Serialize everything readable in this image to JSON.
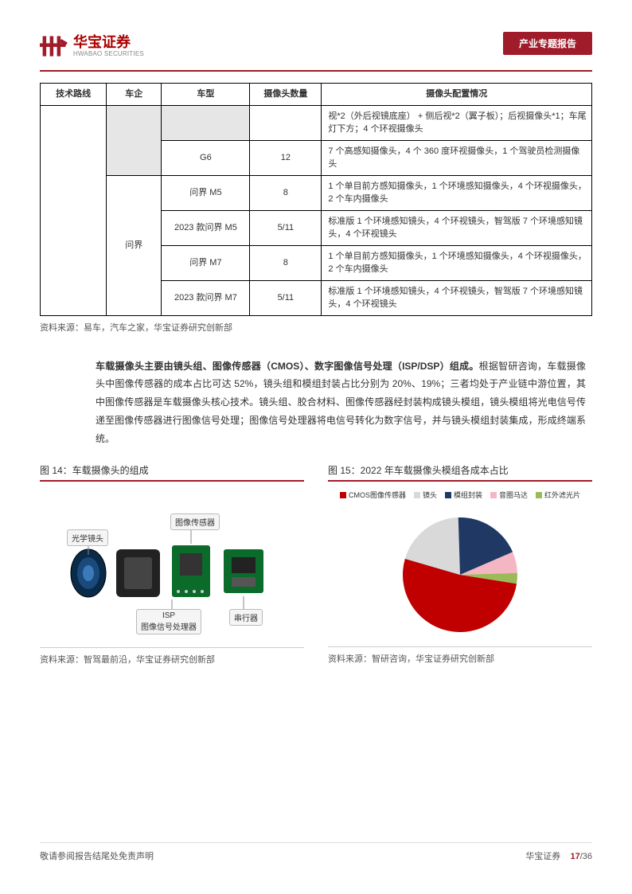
{
  "header": {
    "logo_cn": "华宝证券",
    "logo_en": "HWABAO SECURITIES",
    "logo_color": "#a01c2a",
    "badge": "产业专题报告"
  },
  "table": {
    "headers": [
      "技术路线",
      "车企",
      "车型",
      "摄像头数量",
      "摄像头配置情况"
    ],
    "col_widths": [
      "12%",
      "10%",
      "16%",
      "13%",
      "49%"
    ],
    "rows": [
      {
        "merge": "first",
        "tech": "",
        "maker": "",
        "model": "",
        "count": "",
        "desc": "视*2（外后视镜底座） + 侧后视*2（翼子板）；后视摄像头*1；车尾灯下方；4 个环视摄像头"
      },
      {
        "merge": "prev-maker",
        "model": "G6",
        "count": "12",
        "desc": "7 个高感知摄像头，4 个 360 度环视摄像头，1 个驾驶员检测摄像头"
      },
      {
        "maker": "问界",
        "maker_rowspan": 4,
        "model": "问界 M5",
        "count": "8",
        "desc": "1 个单目前方感知摄像头，1 个环境感知摄像头，4 个环视摄像头，2 个车内摄像头"
      },
      {
        "model": "2023 款问界 M5",
        "count": "5/11",
        "desc": "标准版 1 个环境感知镜头，4 个环视镜头，智驾版 7 个环境感知镜头，4 个环视镜头"
      },
      {
        "model": "问界 M7",
        "count": "8",
        "desc": "1 个单目前方感知摄像头，1 个环境感知摄像头，4 个环视摄像头，2 个车内摄像头"
      },
      {
        "model": "2023 款问界 M7",
        "count": "5/11",
        "desc": "标准版 1 个环境感知镜头，4 个环视镜头，智驾版 7 个环境感知镜头，4 个环视镜头"
      }
    ],
    "source": "资料来源：易车，汽车之家，华宝证券研究创新部"
  },
  "body": {
    "bold_lead": "车载摄像头主要由镜头组、图像传感器（CMOS）、数字图像信号处理（ISP/DSP）组成。",
    "text": "根据智研咨询，车载摄像头中图像传感器的成本占比可达 52%，镜头组和模组封装占比分别为 20%、19%；三者均处于产业链中游位置，其中图像传感器是车载摄像头核心技术。镜头组、胶合材料、图像传感器经封装构成镜头模组，镜头模组将光电信号传递至图像传感器进行图像信号处理；图像信号处理器将电信号转化为数字信号，并与镜头模组封装集成，形成终端系统。"
  },
  "fig14": {
    "title": "图 14：车载摄像头的组成",
    "labels": {
      "lens": "光学镜头",
      "sensor": "图像传感器",
      "isp": "ISP\n图像信号处理器",
      "serializer": "串行器"
    },
    "source": "资料来源：智驾最前沿，华宝证券研究创新部"
  },
  "fig15": {
    "title": "图 15：2022 年车载摄像头模组各成本占比",
    "legend": [
      {
        "label": "CMOS图像传感器",
        "color": "#c00000"
      },
      {
        "label": "镜头",
        "color": "#d9d9d9"
      },
      {
        "label": "模组封装",
        "color": "#1f3864"
      },
      {
        "label": "音圈马达",
        "color": "#f4b6c2"
      },
      {
        "label": "红外滤光片",
        "color": "#9bbb59"
      }
    ],
    "slices": [
      {
        "value": 52,
        "color": "#c00000"
      },
      {
        "value": 20,
        "color": "#d9d9d9"
      },
      {
        "value": 19,
        "color": "#1f3864"
      },
      {
        "value": 6,
        "color": "#f4b6c2"
      },
      {
        "value": 3,
        "color": "#9bbb59"
      }
    ],
    "source": "资料来源：智研咨询，华宝证券研究创新部"
  },
  "footer": {
    "disclaimer": "敬请参阅报告结尾处免责声明",
    "company": "华宝证券",
    "page_current": "17",
    "page_total": "/36"
  }
}
